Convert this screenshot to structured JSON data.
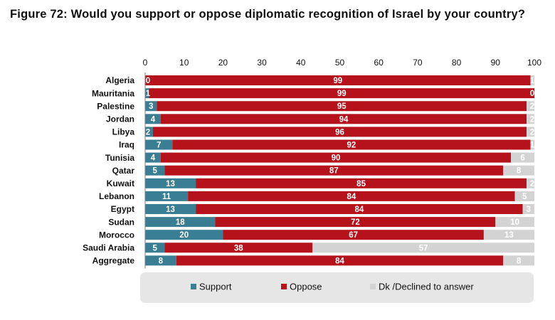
{
  "title": "Figure 72: Would you support or oppose diplomatic recognition of Israel by your country?",
  "colors": {
    "support": "#3a7e94",
    "oppose": "#b5121b",
    "dk": "#d3d3d3",
    "legend_bg": "#e6e6e6"
  },
  "chart_data": {
    "type": "bar",
    "orientation": "horizontal",
    "stacked": true,
    "title": "Figure 72: Would you support or oppose diplomatic recognition of Israel by your country?",
    "xlim": [
      0,
      100
    ],
    "xticks": [
      0,
      10,
      20,
      30,
      40,
      50,
      60,
      70,
      80,
      90,
      100
    ],
    "categories": [
      "Algeria",
      "Mauritania",
      "Palestine",
      "Jordan",
      "Libya",
      "Iraq",
      "Tunisia",
      "Qatar",
      "Kuwait",
      "Lebanon",
      "Egypt",
      "Sudan",
      "Morocco",
      "Saudi Arabia",
      "Aggregate"
    ],
    "series": [
      {
        "name": "Support",
        "values": [
          0,
          1,
          3,
          4,
          2,
          7,
          4,
          5,
          13,
          11,
          13,
          18,
          20,
          5,
          8
        ]
      },
      {
        "name": "Oppose",
        "values": [
          99,
          99,
          95,
          94,
          96,
          92,
          90,
          87,
          85,
          84,
          84,
          72,
          67,
          38,
          84
        ]
      },
      {
        "name": "Dk /Declined to answer",
        "values": [
          1,
          0,
          2,
          2,
          2,
          1,
          6,
          8,
          2,
          5,
          3,
          10,
          13,
          57,
          8
        ]
      }
    ],
    "legend_position": "bottom",
    "grid": false
  }
}
